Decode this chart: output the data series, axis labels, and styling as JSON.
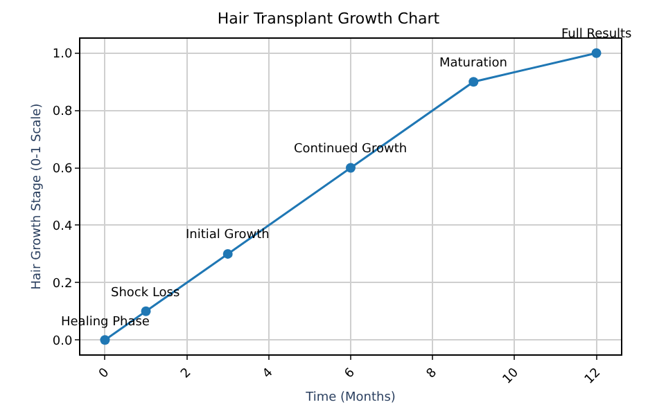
{
  "chart_data": {
    "type": "line",
    "title": "Hair Transplant Growth Chart",
    "xlabel": "Time (Months)",
    "ylabel": "Hair Growth Stage (0-1 Scale)",
    "x": [
      0,
      1,
      3,
      6,
      9,
      12
    ],
    "series": [
      {
        "color": "#1f77b4",
        "values": [
          0,
          0.1,
          0.3,
          0.6,
          0.9,
          1.0
        ]
      }
    ],
    "annotations": [
      {
        "text": "Healing Phase",
        "x": 0,
        "y": 0
      },
      {
        "text": "Shock Loss",
        "x": 1,
        "y": 0.1
      },
      {
        "text": "Initial Growth",
        "x": 3,
        "y": 0.3
      },
      {
        "text": "Continued Growth",
        "x": 6,
        "y": 0.6
      },
      {
        "text": "Maturation",
        "x": 9,
        "y": 0.9
      },
      {
        "text": "Full Results",
        "x": 12,
        "y": 1.0
      }
    ],
    "xlim": [
      -0.6,
      12.6
    ],
    "xticks": [
      0,
      2,
      4,
      6,
      8,
      10,
      12
    ],
    "ylim": [
      -0.05,
      1.05
    ],
    "yticks": [
      {
        "value": 0,
        "label": "0.0"
      },
      {
        "value": 0.2,
        "label": "0.2"
      },
      {
        "value": 0.4,
        "label": "0.4"
      },
      {
        "value": 0.6,
        "label": "0.6"
      },
      {
        "value": 0.8,
        "label": "0.8"
      },
      {
        "value": 1.0,
        "label": "1.0"
      }
    ],
    "grid": true,
    "marker": "circle",
    "line_style": "solid",
    "legend": false
  }
}
